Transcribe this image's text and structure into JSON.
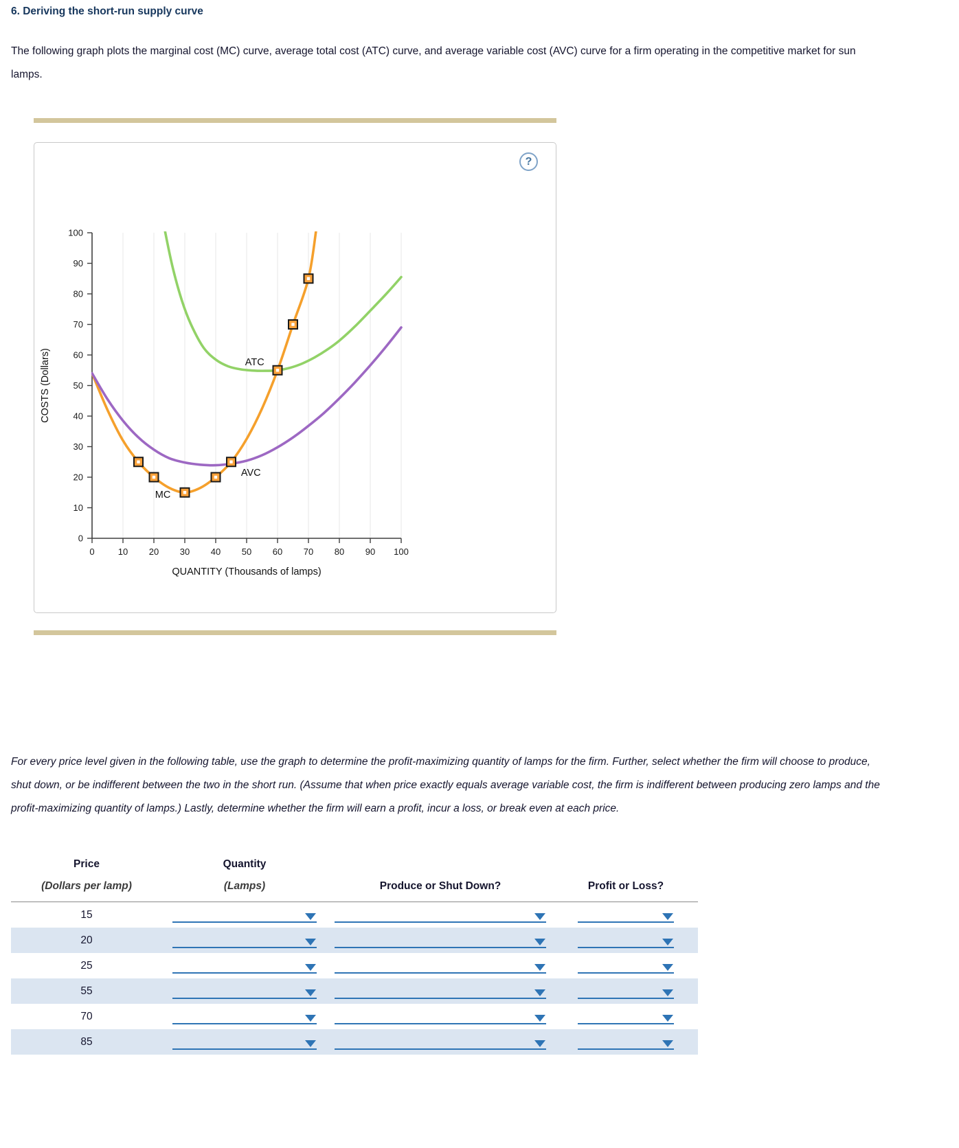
{
  "page": {
    "heading": "6. Deriving the short-run supply curve",
    "intro": "The following graph plots the marginal cost (MC) curve, average total cost (ATC) curve, and average variable cost (AVC) curve for a firm operating in the competitive market for sun lamps.",
    "instructions": "For every price level given in the following table, use the graph to determine the profit-maximizing quantity of lamps for the firm. Further, select whether the firm will choose to produce, shut down, or be indifferent between the two in the short run. (Assume that when price exactly equals average variable cost, the firm is indifferent between producing zero lamps and the profit-maximizing quantity of lamps.) Lastly, determine whether the firm will earn a profit, incur a loss, or break even at each price."
  },
  "panel": {
    "help_label": "?"
  },
  "chart_data": {
    "type": "line",
    "title": "",
    "xlabel": "QUANTITY (Thousands of lamps)",
    "ylabel": "COSTS (Dollars)",
    "xlim": [
      0,
      100
    ],
    "ylim": [
      0,
      100
    ],
    "xticks": [
      0,
      10,
      20,
      30,
      40,
      50,
      60,
      70,
      80,
      90,
      100
    ],
    "yticks": [
      0,
      10,
      20,
      30,
      40,
      50,
      60,
      70,
      80,
      90,
      100
    ],
    "grid": "vertical",
    "legend_position": "inline-labels",
    "series": [
      {
        "name": "MC",
        "label": "MC",
        "color": "#f5a02c",
        "label_xy": [
          20.4,
          13.3
        ],
        "label_anchor": "start",
        "points": [
          [
            0,
            54
          ],
          [
            5,
            42
          ],
          [
            10,
            32
          ],
          [
            15,
            25
          ],
          [
            20,
            20
          ],
          [
            25,
            16.5
          ],
          [
            30,
            15
          ],
          [
            35,
            16.5
          ],
          [
            40,
            20
          ],
          [
            45,
            25
          ],
          [
            50,
            32.5
          ],
          [
            55,
            42.5
          ],
          [
            60,
            55
          ],
          [
            65,
            70
          ],
          [
            70,
            85
          ],
          [
            72.5,
            101
          ]
        ]
      },
      {
        "name": "ATC",
        "label": "ATC",
        "color": "#92d267",
        "label_xy": [
          49.5,
          56.6
        ],
        "label_anchor": "start",
        "points": [
          [
            23.5,
            101
          ],
          [
            26,
            89
          ],
          [
            29,
            78
          ],
          [
            32,
            70
          ],
          [
            36,
            62.5
          ],
          [
            40,
            58.5
          ],
          [
            44,
            56.3
          ],
          [
            48,
            55.3
          ],
          [
            52,
            54.9
          ],
          [
            56,
            54.8
          ],
          [
            60,
            55
          ],
          [
            64,
            55.8
          ],
          [
            68,
            57.2
          ],
          [
            72,
            59.2
          ],
          [
            76,
            61.7
          ],
          [
            80,
            64.7
          ],
          [
            85,
            69.3
          ],
          [
            90,
            74.5
          ],
          [
            95,
            79.8
          ],
          [
            100,
            85.5
          ]
        ]
      },
      {
        "name": "AVC",
        "label": "AVC",
        "color": "#9d68c3",
        "label_xy": [
          48.2,
          20.4
        ],
        "label_anchor": "start",
        "points": [
          [
            0,
            54
          ],
          [
            5,
            45.5
          ],
          [
            10,
            38.5
          ],
          [
            15,
            33
          ],
          [
            20,
            29
          ],
          [
            25,
            26.2
          ],
          [
            30,
            24.8
          ],
          [
            35,
            24.1
          ],
          [
            40,
            23.9
          ],
          [
            45,
            24.4
          ],
          [
            50,
            25.4
          ],
          [
            55,
            27.2
          ],
          [
            60,
            29.8
          ],
          [
            65,
            33
          ],
          [
            70,
            36.8
          ],
          [
            75,
            41
          ],
          [
            80,
            45.8
          ],
          [
            85,
            51
          ],
          [
            90,
            56.6
          ],
          [
            95,
            62.6
          ],
          [
            100,
            69
          ]
        ]
      }
    ],
    "markers": {
      "fill": "#f9a13a",
      "stroke": "#1a1a1a",
      "points": [
        [
          15,
          25
        ],
        [
          20,
          20
        ],
        [
          30,
          15
        ],
        [
          40,
          20
        ],
        [
          45,
          25
        ],
        [
          60,
          55
        ],
        [
          65,
          70
        ],
        [
          70,
          85
        ]
      ]
    }
  },
  "table": {
    "header": {
      "price_line1": "Price",
      "price_line2": "(Dollars per lamp)",
      "quantity_line1": "Quantity",
      "quantity_line2": "(Lamps)",
      "produce": "Produce or Shut Down?",
      "profit": "Profit or Loss?"
    },
    "rows": [
      {
        "price": "15"
      },
      {
        "price": "20"
      },
      {
        "price": "25"
      },
      {
        "price": "55"
      },
      {
        "price": "70"
      },
      {
        "price": "85"
      }
    ]
  }
}
